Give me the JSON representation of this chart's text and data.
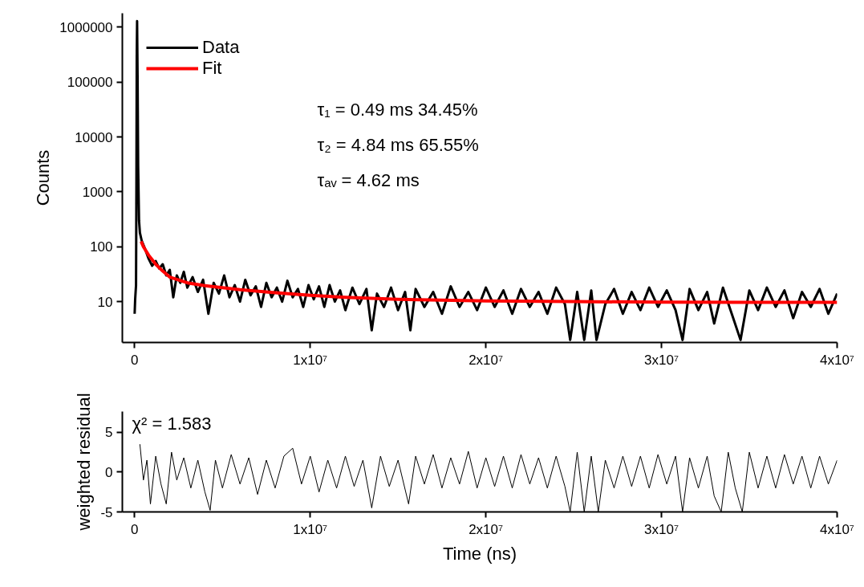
{
  "chart_data": [
    {
      "type": "line",
      "ylabel": "Counts",
      "log": true,
      "grid": false,
      "legend": "top left",
      "line_style": "solid",
      "marker": "none",
      "xlim": [
        -700000.0,
        40000000.0
      ],
      "xticks": [
        0,
        {
          "value": 10000000.0,
          "label": "1x10⁷"
        },
        {
          "value": 20000000.0,
          "label": "2x10⁷"
        },
        {
          "value": 30000000.0,
          "label": "3x10⁷"
        },
        {
          "value": 40000000.0,
          "label": "4x10⁷"
        }
      ],
      "ylim": [
        1.8,
        1800000.0
      ],
      "yticks": [
        10,
        100,
        1000,
        10000,
        100000,
        1000000
      ],
      "annotations": [
        "τ₁ =   0.49 ms    34.45%",
        "τ₂ =   4.84 ms    65.55%",
        "τₐᵥ =  4.62 ms"
      ],
      "series": [
        {
          "name": "Data",
          "color": "#000000",
          "x": [
            0,
            30000.0,
            80000.0,
            100000.0,
            120000.0,
            140000.0,
            170000.0,
            200000.0,
            250000.0,
            300000.0,
            400000.0,
            600000.0,
            800000.0,
            1000000.0,
            1200000.0,
            1400000.0,
            1600000.0,
            1800000.0,
            2000000.0,
            2200000.0,
            2400000.0,
            2600000.0,
            2800000.0,
            3000000.0,
            3300000.0,
            3600000.0,
            3900000.0,
            4200000.0,
            4500000.0,
            4800000.0,
            5100000.0,
            5400000.0,
            5700000.0,
            6000000.0,
            6300000.0,
            6600000.0,
            6900000.0,
            7200000.0,
            7500000.0,
            7800000.0,
            8100000.0,
            8400000.0,
            8700000.0,
            9000000.0,
            9300000.0,
            9600000.0,
            9900000.0,
            10200000.0,
            10500000.0,
            10800000.0,
            11100000.0,
            11400000.0,
            11700000.0,
            12000000.0,
            12400000.0,
            12800000.0,
            13200000.0,
            13500000.0,
            13800000.0,
            14200000.0,
            14600000.0,
            15000000.0,
            15400000.0,
            15700000.0,
            16000000.0,
            16500000.0,
            17000000.0,
            17500000.0,
            18000000.0,
            18500000.0,
            19000000.0,
            19500000.0,
            20000000.0,
            20500000.0,
            21000000.0,
            21500000.0,
            22000000.0,
            22500000.0,
            23000000.0,
            23500000.0,
            24000000.0,
            24500000.0,
            24800000.0,
            25200000.0,
            25600000.0,
            26000000.0,
            26300000.0,
            26800000.0,
            27300000.0,
            27800000.0,
            28300000.0,
            28800000.0,
            29300000.0,
            29800000.0,
            30300000.0,
            30800000.0,
            31200000.0,
            31600000.0,
            32100000.0,
            32600000.0,
            33000000.0,
            33500000.0,
            34000000.0,
            34500000.0,
            35000000.0,
            35500000.0,
            36000000.0,
            36500000.0,
            37000000.0,
            37500000.0,
            38000000.0,
            38500000.0,
            39000000.0,
            39500000.0,
            40000000.0
          ],
          "values": [
            6,
            11,
            20,
            1000,
            300000,
            1300000,
            100000,
            3000,
            300,
            180,
            130,
            90,
            60,
            45,
            55,
            40,
            48,
            30,
            38,
            12,
            30,
            22,
            35,
            18,
            28,
            15,
            25,
            6,
            22,
            14,
            30,
            12,
            20,
            10,
            25,
            13,
            19,
            8,
            22,
            12,
            18,
            10,
            24,
            12,
            17,
            8,
            20,
            11,
            19,
            8,
            20,
            10,
            16,
            7,
            18,
            9,
            17,
            3,
            14,
            8,
            18,
            7,
            15,
            3,
            17,
            8,
            15,
            6,
            19,
            8,
            15,
            7,
            18,
            8,
            16,
            6,
            17,
            8,
            15,
            6,
            18,
            9,
            2,
            15,
            2,
            16,
            2,
            9,
            17,
            6,
            15,
            7,
            18,
            8,
            16,
            7,
            2,
            17,
            7,
            15,
            4,
            18,
            6,
            2,
            16,
            7,
            18,
            8,
            16,
            5,
            15,
            8,
            17,
            6,
            14
          ]
        },
        {
          "name": "Fit",
          "color": "#ff0000",
          "x": [
            370000.0,
            500000.0,
            800000.0,
            1200000.0,
            1600000.0,
            2000000.0,
            3000000.0,
            4000000.0,
            6000000.0,
            8000000.0,
            10000000.0,
            12000000.0,
            15000000.0,
            20000000.0,
            25000000.0,
            30000000.0,
            35000000.0,
            40000000.0
          ],
          "values": [
            125,
            100,
            70,
            48,
            36,
            28,
            22,
            19.5,
            16.5,
            14.5,
            13,
            12,
            11,
            10.3,
            10,
            9.8,
            9.7,
            9.7
          ]
        }
      ]
    },
    {
      "type": "line",
      "xlabel": "Time (ns)",
      "ylabel": "weighted residual",
      "grid": false,
      "line_style": "solid",
      "marker": "none",
      "xlim": [
        -700000.0,
        40000000.0
      ],
      "xticks": [
        0,
        {
          "value": 10000000.0,
          "label": "1x10⁷"
        },
        {
          "value": 20000000.0,
          "label": "2x10⁷"
        },
        {
          "value": 30000000.0,
          "label": "3x10⁷"
        },
        {
          "value": 40000000.0,
          "label": "4x10⁷"
        }
      ],
      "ylim": [
        -5,
        7.6
      ],
      "yticks": [
        -5,
        0,
        5
      ],
      "annotations": [
        "χ² = 1.583"
      ],
      "series": [
        {
          "color": "#000000",
          "x": [
            300000.0,
            500000.0,
            700000.0,
            900000.0,
            1200000.0,
            1500000.0,
            1800000.0,
            2100000.0,
            2400000.0,
            2800000.0,
            3200000.0,
            3600000.0,
            4000000.0,
            4300000.0,
            4600000.0,
            5000000.0,
            5500000.0,
            6000000.0,
            6500000.0,
            7000000.0,
            7500000.0,
            8000000.0,
            8500000.0,
            9000000.0,
            9500000.0,
            10000000.0,
            10500000.0,
            11000000.0,
            11500000.0,
            12000000.0,
            12500000.0,
            13000000.0,
            13500000.0,
            14000000.0,
            14500000.0,
            15000000.0,
            15600000.0,
            16000000.0,
            16500000.0,
            17000000.0,
            17500000.0,
            18000000.0,
            18500000.0,
            19000000.0,
            19500000.0,
            20000000.0,
            20500000.0,
            21000000.0,
            21500000.0,
            22000000.0,
            22500000.0,
            23000000.0,
            23500000.0,
            24000000.0,
            24500000.0,
            24800000.0,
            25200000.0,
            25600000.0,
            26000000.0,
            26400000.0,
            26800000.0,
            27300000.0,
            27800000.0,
            28300000.0,
            28800000.0,
            29300000.0,
            29800000.0,
            30300000.0,
            30800000.0,
            31200000.0,
            31600000.0,
            32100000.0,
            32600000.0,
            33000000.0,
            33400000.0,
            33800000.0,
            34200000.0,
            34600000.0,
            35000000.0,
            35500000.0,
            36000000.0,
            36500000.0,
            37000000.0,
            37500000.0,
            38000000.0,
            38500000.0,
            39000000.0,
            39500000.0,
            40000000.0
          ],
          "values": [
            3.5,
            -1,
            1.5,
            -4,
            2,
            -1.5,
            -4,
            2.5,
            -1,
            1.8,
            -2,
            1.5,
            -2.5,
            -4.8,
            1.5,
            -2,
            2.2,
            -1.5,
            1.8,
            -2.8,
            1.5,
            -2,
            2,
            3,
            -1.5,
            2,
            -2.5,
            1.5,
            -2,
            2,
            -1.8,
            1.5,
            -4.5,
            2,
            -1.8,
            1.5,
            -4,
            2,
            -1.5,
            2.2,
            -2,
            1.8,
            -1.5,
            2.6,
            -2,
            1.8,
            -1.8,
            2,
            -2,
            2.2,
            -1.5,
            1.8,
            -2,
            2,
            -1.8,
            -5,
            2.5,
            -5,
            2,
            -5,
            1.5,
            -2,
            2,
            -1.8,
            2,
            -2,
            2.2,
            -1.5,
            2,
            -5,
            1.8,
            -2,
            2,
            -3,
            -5,
            2.5,
            -2,
            -5,
            2.5,
            -2,
            2,
            -2,
            2.2,
            -1.5,
            2,
            -2,
            2,
            -1.5,
            1.5
          ]
        }
      ]
    }
  ]
}
